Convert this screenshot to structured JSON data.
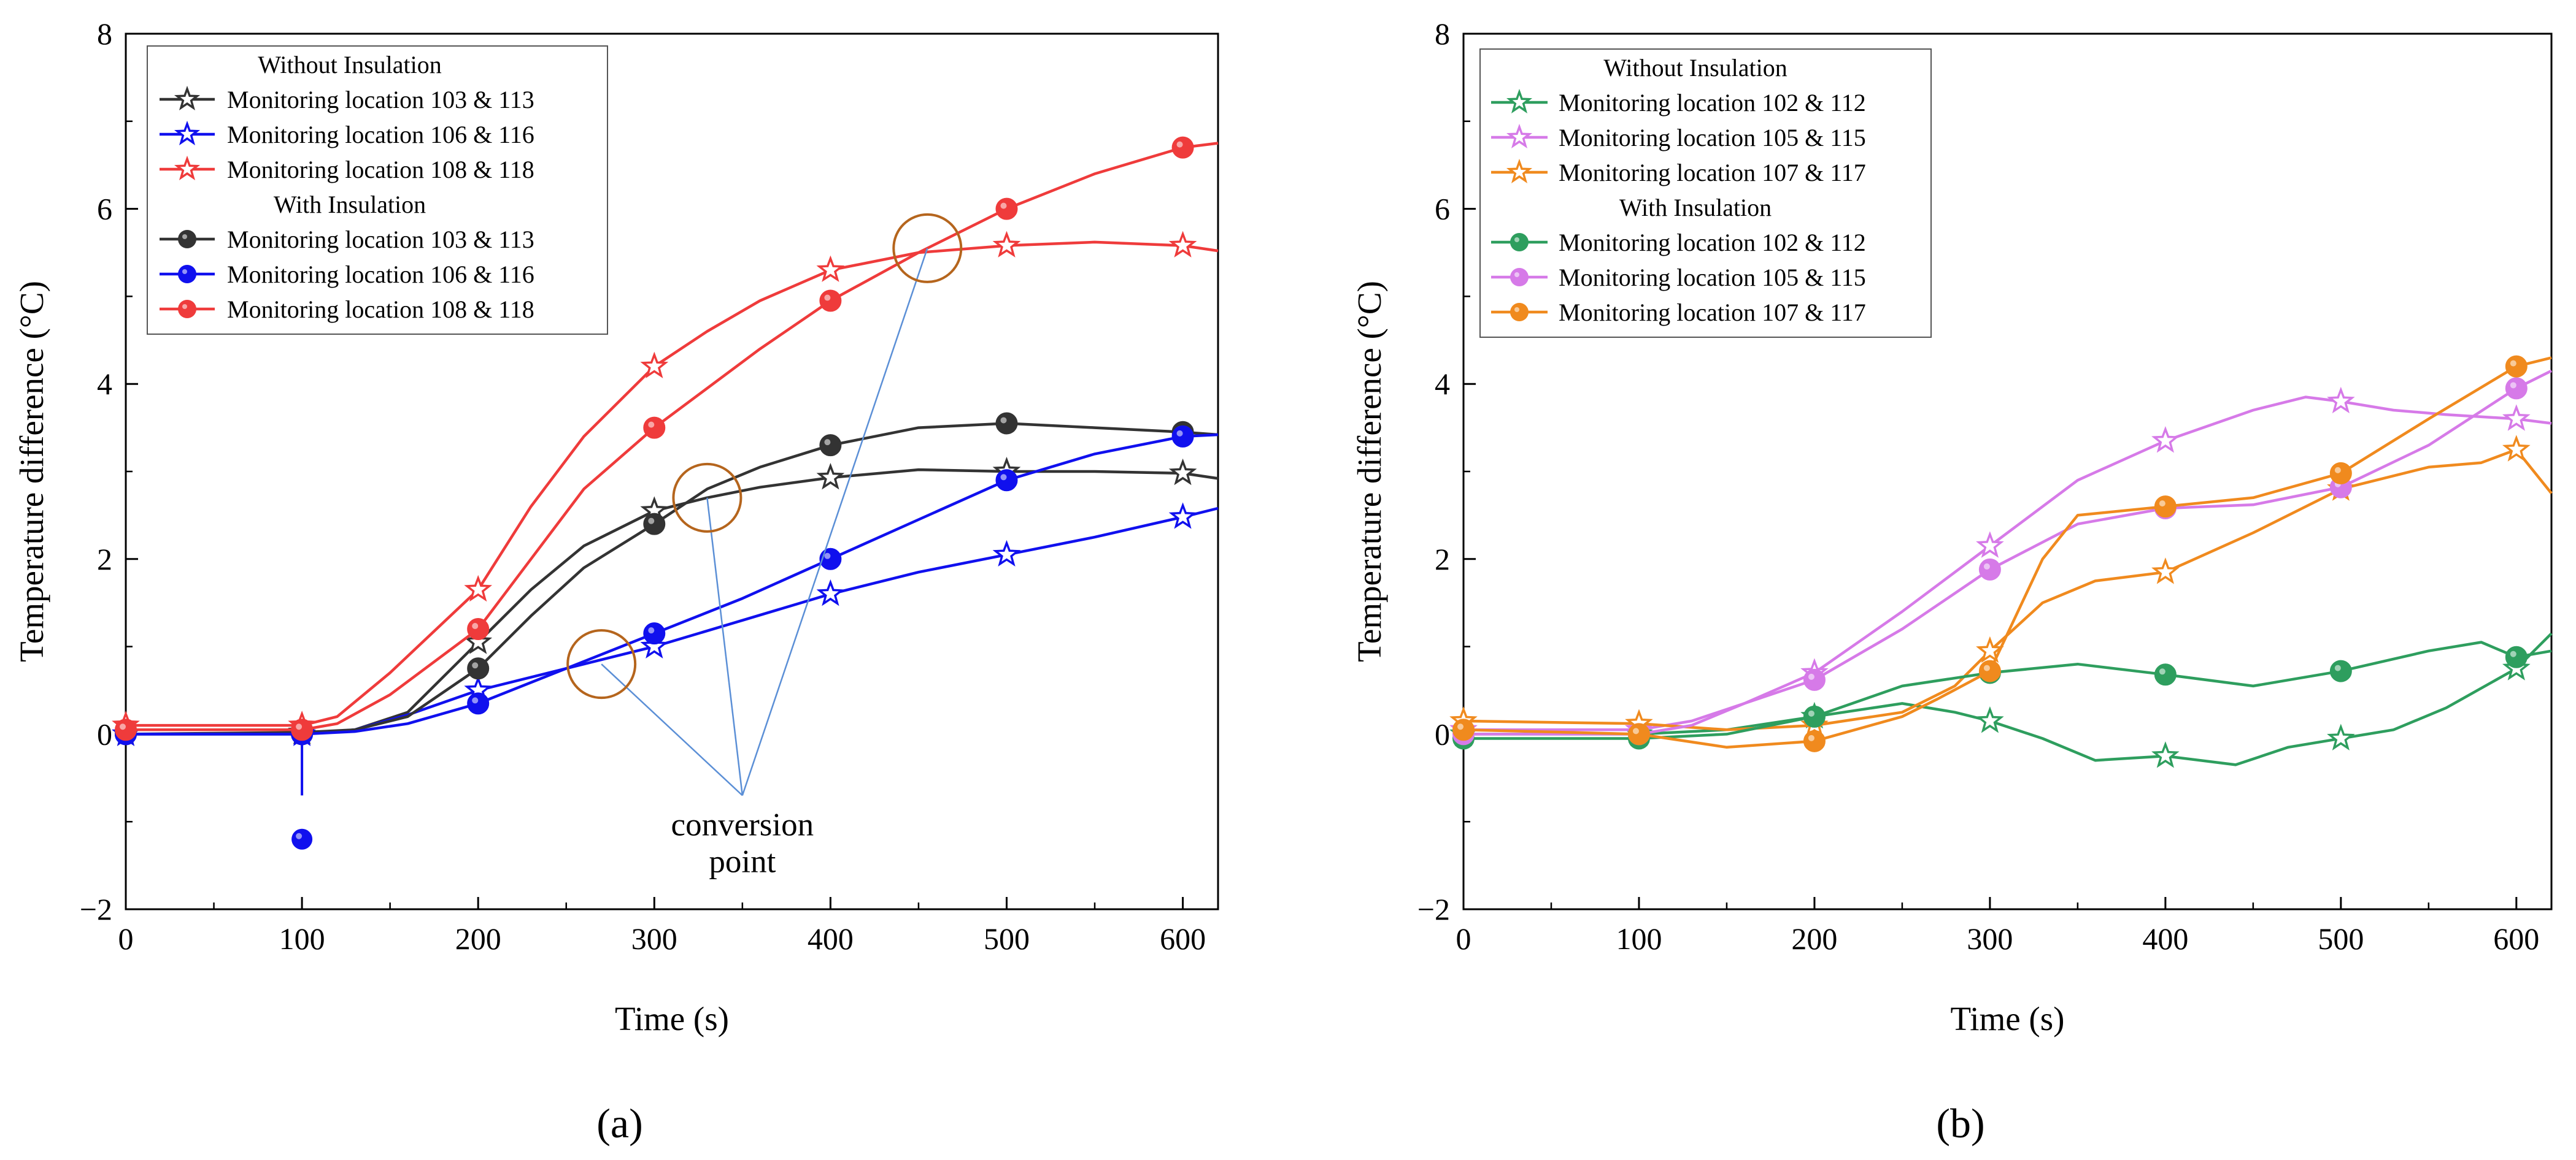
{
  "colors": {
    "black_series": "#333333",
    "blue_series": "#1010ee",
    "red_series": "#ef3b3b",
    "green_series": "#2e9e5e",
    "magenta_series": "#d67ae8",
    "orange_series": "#f08a1e",
    "annotation_circle": "#b5651d",
    "annotation_line": "#5b8fd6"
  },
  "chart_data": [
    {
      "panel_label": "(a)",
      "type": "line",
      "xlabel": "Time (s)",
      "ylabel": "Temperature difference (°C)",
      "xlim": [
        0,
        620
      ],
      "ylim": [
        -2,
        8
      ],
      "xticks": [
        0,
        100,
        200,
        300,
        400,
        500,
        600
      ],
      "yticks": [
        -2,
        0,
        2,
        4,
        6,
        8
      ],
      "x_tick_labels": [
        "0",
        "100",
        "200",
        "300",
        "400",
        "500",
        "600"
      ],
      "y_tick_labels": [
        "−2",
        "0",
        "2",
        "4",
        "6",
        "8"
      ],
      "legend": {
        "groups": [
          {
            "title": "Without Insulation",
            "entries": [
              {
                "label": "Monitoring location 103 & 113",
                "series": "a_no_103"
              },
              {
                "label": "Monitoring location 106 & 116",
                "series": "a_no_106"
              },
              {
                "label": "Monitoring location 108 & 118",
                "series": "a_no_108"
              }
            ]
          },
          {
            "title": "With Insulation",
            "entries": [
              {
                "label": "Monitoring location 103 & 113",
                "series": "a_ins_103"
              },
              {
                "label": "Monitoring location 106 & 116",
                "series": "a_ins_106"
              },
              {
                "label": "Monitoring location 108 & 118",
                "series": "a_ins_108"
              }
            ]
          }
        ]
      },
      "series": [
        {
          "id": "a_no_103",
          "name": "Without Insulation - Monitoring location 103 & 113",
          "color": "black_series",
          "marker": "star",
          "x": [
            0,
            100,
            130,
            160,
            200,
            230,
            260,
            300,
            330,
            360,
            400,
            450,
            500,
            550,
            600,
            620
          ],
          "y": [
            0.0,
            0.02,
            0.05,
            0.25,
            1.05,
            1.65,
            2.15,
            2.55,
            2.7,
            2.82,
            2.93,
            3.02,
            3.0,
            3.0,
            2.98,
            2.92
          ],
          "marker_x": [
            0,
            100,
            200,
            300,
            400,
            500,
            600
          ]
        },
        {
          "id": "a_no_106",
          "name": "Without Insulation - Monitoring location 106 & 116",
          "color": "blue_series",
          "marker": "star",
          "x": [
            0,
            100,
            130,
            160,
            200,
            250,
            300,
            350,
            400,
            450,
            500,
            550,
            600,
            620
          ],
          "y": [
            0.0,
            0.0,
            0.05,
            0.22,
            0.5,
            0.75,
            1.0,
            1.3,
            1.6,
            1.85,
            2.05,
            2.25,
            2.48,
            2.58
          ],
          "marker_x": [
            0,
            100,
            200,
            300,
            400,
            500,
            600
          ]
        },
        {
          "id": "a_no_108",
          "name": "Without Insulation - Monitoring location 108 & 118",
          "color": "red_series",
          "marker": "star",
          "x": [
            0,
            100,
            120,
            150,
            200,
            230,
            260,
            300,
            330,
            360,
            400,
            450,
            500,
            550,
            600,
            620
          ],
          "y": [
            0.1,
            0.1,
            0.2,
            0.7,
            1.65,
            2.6,
            3.4,
            4.2,
            4.6,
            4.95,
            5.3,
            5.5,
            5.58,
            5.62,
            5.58,
            5.52
          ],
          "marker_x": [
            0,
            100,
            200,
            300,
            400,
            500,
            600
          ]
        },
        {
          "id": "a_ins_103",
          "name": "With Insulation - Monitoring location 103 & 113",
          "color": "black_series",
          "marker": "circle",
          "x": [
            0,
            100,
            130,
            160,
            200,
            230,
            260,
            300,
            330,
            360,
            400,
            450,
            500,
            550,
            600,
            620
          ],
          "y": [
            0.0,
            0.0,
            0.05,
            0.2,
            0.75,
            1.35,
            1.9,
            2.4,
            2.8,
            3.05,
            3.3,
            3.5,
            3.55,
            3.5,
            3.45,
            3.42
          ],
          "marker_x": [
            0,
            100,
            200,
            300,
            400,
            500,
            600
          ]
        },
        {
          "id": "a_ins_106",
          "name": "With Insulation - Monitoring location 106 & 116",
          "color": "blue_series",
          "marker": "circle",
          "x": [
            0,
            100,
            130,
            160,
            200,
            250,
            300,
            350,
            400,
            450,
            500,
            550,
            600,
            620
          ],
          "y": [
            0.0,
            0.0,
            0.03,
            0.12,
            0.35,
            0.75,
            1.15,
            1.55,
            2.0,
            2.45,
            2.9,
            3.2,
            3.4,
            3.42
          ],
          "marker_x": [
            0,
            100,
            200,
            300,
            400,
            500,
            600
          ],
          "outlier": {
            "x": 100,
            "y": -1.2
          }
        },
        {
          "id": "a_ins_108",
          "name": "With Insulation - Monitoring location 108 & 118",
          "color": "red_series",
          "marker": "circle",
          "x": [
            0,
            100,
            120,
            150,
            200,
            230,
            260,
            300,
            330,
            360,
            400,
            450,
            500,
            550,
            600,
            620
          ],
          "y": [
            0.05,
            0.05,
            0.12,
            0.45,
            1.2,
            2.0,
            2.8,
            3.5,
            3.95,
            4.4,
            4.95,
            5.5,
            6.0,
            6.4,
            6.7,
            6.75
          ],
          "marker_x": [
            0,
            100,
            200,
            300,
            400,
            500,
            600
          ]
        }
      ],
      "annotation": {
        "text_lines": [
          "conversion",
          "point"
        ],
        "anchor": {
          "x": 350,
          "y": -0.7
        },
        "circles": [
          {
            "x": 270,
            "y": 0.8
          },
          {
            "x": 330,
            "y": 2.7
          },
          {
            "x": 455,
            "y": 5.55
          }
        ]
      }
    },
    {
      "panel_label": "(b)",
      "type": "line",
      "xlabel": "Time (s)",
      "ylabel": "Temperature difference (°C)",
      "xlim": [
        0,
        620
      ],
      "ylim": [
        -2,
        8
      ],
      "xticks": [
        0,
        100,
        200,
        300,
        400,
        500,
        600
      ],
      "yticks": [
        -2,
        0,
        2,
        4,
        6,
        8
      ],
      "x_tick_labels": [
        "0",
        "100",
        "200",
        "300",
        "400",
        "500",
        "600"
      ],
      "y_tick_labels": [
        "−2",
        "0",
        "2",
        "4",
        "6",
        "8"
      ],
      "legend": {
        "groups": [
          {
            "title": "Without Insulation",
            "entries": [
              {
                "label": "Monitoring location 102 & 112",
                "series": "b_no_102"
              },
              {
                "label": "Monitoring location 105 & 115",
                "series": "b_no_105"
              },
              {
                "label": "Monitoring location 107 & 117",
                "series": "b_no_107"
              }
            ]
          },
          {
            "title": "With Insulation",
            "entries": [
              {
                "label": "Monitoring location 102 & 112",
                "series": "b_ins_102"
              },
              {
                "label": "Monitoring location 105 & 115",
                "series": "b_ins_105"
              },
              {
                "label": "Monitoring location 107 & 117",
                "series": "b_ins_107"
              }
            ]
          }
        ]
      },
      "series": [
        {
          "id": "b_no_102",
          "name": "Without Insulation - Monitoring location 102 & 112",
          "color": "green_series",
          "marker": "star",
          "x": [
            0,
            100,
            150,
            200,
            250,
            280,
            300,
            330,
            360,
            400,
            440,
            470,
            500,
            530,
            560,
            600,
            620
          ],
          "y": [
            0.0,
            0.0,
            0.05,
            0.2,
            0.35,
            0.25,
            0.15,
            -0.05,
            -0.3,
            -0.25,
            -0.35,
            -0.15,
            -0.05,
            0.05,
            0.3,
            0.75,
            1.15
          ],
          "marker_x": [
            0,
            100,
            200,
            300,
            400,
            500,
            600
          ]
        },
        {
          "id": "b_no_105",
          "name": "Without Insulation - Monitoring location 105 & 115",
          "color": "magenta_series",
          "marker": "star",
          "x": [
            0,
            100,
            130,
            160,
            200,
            250,
            300,
            350,
            400,
            450,
            480,
            500,
            530,
            560,
            600,
            620
          ],
          "y": [
            0.05,
            0.05,
            0.15,
            0.35,
            0.7,
            1.4,
            2.15,
            2.9,
            3.35,
            3.7,
            3.85,
            3.8,
            3.7,
            3.65,
            3.6,
            3.55
          ],
          "marker_x": [
            0,
            100,
            200,
            300,
            400,
            500,
            600
          ]
        },
        {
          "id": "b_no_107",
          "name": "Without Insulation - Monitoring location 107 & 117",
          "color": "orange_series",
          "marker": "star",
          "x": [
            0,
            100,
            150,
            200,
            250,
            280,
            300,
            330,
            360,
            400,
            450,
            500,
            550,
            580,
            600,
            620
          ],
          "y": [
            0.15,
            0.12,
            0.05,
            0.1,
            0.25,
            0.55,
            0.95,
            1.5,
            1.75,
            1.85,
            2.3,
            2.8,
            3.05,
            3.1,
            3.25,
            2.75
          ],
          "marker_x": [
            0,
            100,
            200,
            300,
            400,
            500,
            600
          ]
        },
        {
          "id": "b_ins_102",
          "name": "With Insulation - Monitoring location 102 & 112",
          "color": "green_series",
          "marker": "circle",
          "x": [
            0,
            100,
            150,
            200,
            250,
            300,
            350,
            400,
            450,
            500,
            550,
            580,
            600,
            620
          ],
          "y": [
            -0.05,
            -0.05,
            0.0,
            0.2,
            0.55,
            0.7,
            0.8,
            0.68,
            0.55,
            0.72,
            0.95,
            1.05,
            0.88,
            0.95
          ],
          "marker_x": [
            0,
            100,
            200,
            300,
            400,
            500,
            600
          ]
        },
        {
          "id": "b_ins_105",
          "name": "With Insulation - Monitoring location 105 & 115",
          "color": "magenta_series",
          "marker": "circle",
          "x": [
            0,
            100,
            130,
            160,
            200,
            250,
            300,
            350,
            400,
            450,
            500,
            550,
            600,
            620
          ],
          "y": [
            0.0,
            0.0,
            0.1,
            0.35,
            0.62,
            1.2,
            1.88,
            2.4,
            2.58,
            2.62,
            2.82,
            3.3,
            3.95,
            4.15
          ],
          "marker_x": [
            0,
            100,
            200,
            300,
            400,
            500,
            600
          ]
        },
        {
          "id": "b_ins_107",
          "name": "With Insulation - Monitoring location 107 & 117",
          "color": "orange_series",
          "marker": "circle",
          "x": [
            0,
            100,
            150,
            200,
            250,
            270,
            300,
            330,
            350,
            400,
            450,
            500,
            550,
            600,
            620
          ],
          "y": [
            0.05,
            0.0,
            -0.15,
            -0.08,
            0.2,
            0.4,
            0.72,
            2.0,
            2.5,
            2.6,
            2.7,
            2.98,
            3.6,
            4.2,
            4.3
          ],
          "marker_x": [
            0,
            100,
            200,
            300,
            400,
            500,
            600
          ]
        }
      ]
    }
  ]
}
